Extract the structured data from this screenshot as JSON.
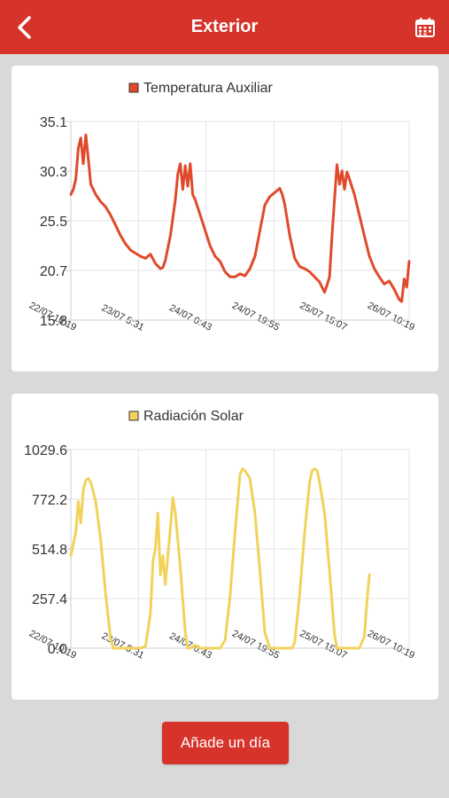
{
  "header": {
    "title": "Exterior",
    "back_icon": "chevron-left-icon",
    "calendar_icon": "calendar-icon",
    "background_color": "#d6332a"
  },
  "charts": [
    {
      "type": "line",
      "legend": "Temperatura Auxiliar",
      "color": "#e04a2b",
      "yticks": [
        "35.1",
        "30.3",
        "25.5",
        "20.7",
        "15.8"
      ],
      "ylim": [
        15.8,
        35.1
      ],
      "xticks": [
        "22/07 10:19",
        "23/07 5:31",
        "24/07 0:43",
        "24/07 19:55",
        "25/07 15:07",
        "26/07 10:19"
      ],
      "points": [
        [
          0.0,
          28.0
        ],
        [
          0.5,
          28.5
        ],
        [
          1.0,
          29.5
        ],
        [
          1.5,
          32.5
        ],
        [
          2.0,
          33.5
        ],
        [
          2.5,
          31.0
        ],
        [
          3.0,
          33.8
        ],
        [
          3.5,
          31.5
        ],
        [
          4.0,
          29.0
        ],
        [
          5.0,
          28.0
        ],
        [
          6.0,
          27.3
        ],
        [
          7.0,
          26.8
        ],
        [
          8.0,
          26.0
        ],
        [
          9.0,
          25.0
        ],
        [
          10.0,
          24.0
        ],
        [
          11.0,
          23.2
        ],
        [
          12.0,
          22.6
        ],
        [
          13.0,
          22.3
        ],
        [
          14.0,
          22.0
        ],
        [
          15.0,
          21.8
        ],
        [
          16.0,
          22.2
        ],
        [
          17.0,
          21.3
        ],
        [
          18.0,
          20.8
        ],
        [
          18.5,
          20.9
        ],
        [
          19.0,
          21.6
        ],
        [
          20.0,
          24.0
        ],
        [
          21.0,
          27.5
        ],
        [
          21.5,
          30.0
        ],
        [
          22.0,
          31.0
        ],
        [
          22.5,
          28.5
        ],
        [
          23.0,
          30.8
        ],
        [
          23.5,
          28.8
        ],
        [
          24.0,
          31.0
        ],
        [
          24.5,
          28.0
        ],
        [
          25.0,
          27.5
        ],
        [
          26.0,
          26.0
        ],
        [
          27.0,
          24.5
        ],
        [
          28.0,
          23.0
        ],
        [
          29.0,
          22.0
        ],
        [
          30.0,
          21.5
        ],
        [
          31.0,
          20.5
        ],
        [
          32.0,
          20.0
        ],
        [
          33.0,
          20.0
        ],
        [
          34.0,
          20.3
        ],
        [
          35.0,
          20.1
        ],
        [
          36.0,
          20.8
        ],
        [
          37.0,
          22.0
        ],
        [
          38.0,
          24.5
        ],
        [
          39.0,
          27.0
        ],
        [
          40.0,
          27.8
        ],
        [
          41.0,
          28.2
        ],
        [
          42.0,
          28.6
        ],
        [
          42.5,
          28.0
        ],
        [
          43.0,
          27.0
        ],
        [
          44.0,
          24.0
        ],
        [
          45.0,
          21.8
        ],
        [
          46.0,
          21.0
        ],
        [
          47.0,
          20.8
        ],
        [
          48.0,
          20.5
        ],
        [
          49.0,
          20.0
        ],
        [
          50.0,
          19.5
        ],
        [
          51.0,
          18.5
        ],
        [
          51.5,
          19.2
        ],
        [
          52.0,
          20.0
        ],
        [
          52.5,
          24.0
        ],
        [
          53.0,
          27.5
        ],
        [
          53.5,
          30.9
        ],
        [
          54.0,
          29.0
        ],
        [
          54.5,
          30.3
        ],
        [
          55.0,
          28.5
        ],
        [
          55.5,
          30.2
        ],
        [
          56.0,
          29.5
        ],
        [
          57.0,
          28.0
        ],
        [
          58.0,
          26.0
        ],
        [
          59.0,
          24.0
        ],
        [
          60.0,
          22.0
        ],
        [
          61.0,
          20.8
        ],
        [
          62.0,
          20.0
        ],
        [
          63.0,
          19.3
        ],
        [
          64.0,
          19.6
        ],
        [
          65.0,
          18.8
        ],
        [
          66.0,
          17.8
        ],
        [
          66.5,
          17.6
        ],
        [
          67.0,
          19.8
        ],
        [
          67.5,
          19.0
        ],
        [
          68.0,
          21.5
        ]
      ]
    },
    {
      "type": "line",
      "legend": "Radiación Solar",
      "color": "#f2d25a",
      "yticks": [
        "1029.6",
        "772.2",
        "514.8",
        "257.4",
        "0.0"
      ],
      "ylim": [
        0.0,
        1029.6
      ],
      "xticks": [
        "22/07 10:19",
        "23/07 5:31",
        "24/07 0:43",
        "24/07 19:55",
        "25/07 15:07",
        "26/07 10:19"
      ],
      "points": [
        [
          0.0,
          480
        ],
        [
          1.0,
          600
        ],
        [
          1.5,
          760
        ],
        [
          2.0,
          650
        ],
        [
          2.5,
          820
        ],
        [
          3.0,
          870
        ],
        [
          3.5,
          880
        ],
        [
          4.0,
          860
        ],
        [
          5.0,
          760
        ],
        [
          6.0,
          560
        ],
        [
          7.0,
          280
        ],
        [
          8.0,
          50
        ],
        [
          8.5,
          0
        ],
        [
          9.0,
          0
        ],
        [
          14.0,
          0
        ],
        [
          15.0,
          10
        ],
        [
          16.0,
          180
        ],
        [
          16.5,
          450
        ],
        [
          17.0,
          520
        ],
        [
          17.5,
          700
        ],
        [
          18.0,
          380
        ],
        [
          18.5,
          480
        ],
        [
          19.0,
          330
        ],
        [
          19.5,
          480
        ],
        [
          20.0,
          620
        ],
        [
          20.5,
          780
        ],
        [
          21.0,
          700
        ],
        [
          22.0,
          420
        ],
        [
          23.0,
          80
        ],
        [
          23.5,
          0
        ],
        [
          24.0,
          0
        ],
        [
          25.0,
          15
        ],
        [
          26.0,
          0
        ],
        [
          30.0,
          0
        ],
        [
          31.0,
          40
        ],
        [
          32.0,
          270
        ],
        [
          33.0,
          600
        ],
        [
          34.0,
          900
        ],
        [
          34.5,
          930
        ],
        [
          35.0,
          920
        ],
        [
          36.0,
          880
        ],
        [
          37.0,
          700
        ],
        [
          38.0,
          400
        ],
        [
          39.0,
          80
        ],
        [
          40.0,
          0
        ],
        [
          44.5,
          0
        ],
        [
          45.0,
          30
        ],
        [
          46.0,
          280
        ],
        [
          47.0,
          600
        ],
        [
          48.0,
          860
        ],
        [
          48.5,
          920
        ],
        [
          49.0,
          930
        ],
        [
          49.5,
          920
        ],
        [
          50.0,
          860
        ],
        [
          51.0,
          700
        ],
        [
          52.0,
          400
        ],
        [
          53.0,
          70
        ],
        [
          53.5,
          0
        ],
        [
          58.0,
          0
        ],
        [
          59.0,
          60
        ],
        [
          59.5,
          240
        ],
        [
          60.0,
          380
        ]
      ]
    }
  ],
  "add_button": {
    "label": "Añade un día"
  }
}
